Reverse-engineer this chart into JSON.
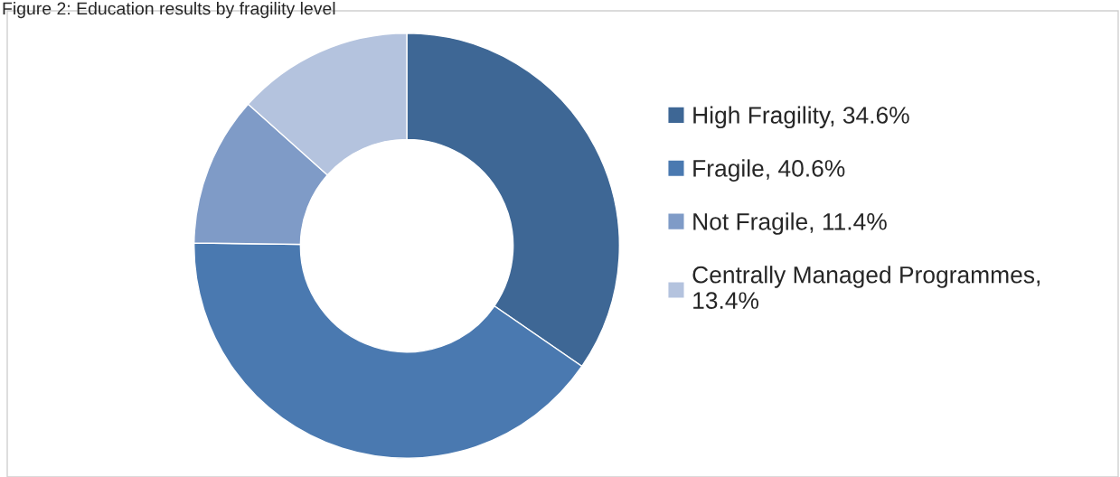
{
  "chart_data": {
    "type": "donut",
    "title": "Figure 2: Education results by fragility level",
    "categories": [
      "High Fragility, 34.6%",
      "Fragile, 40.6%",
      "Not Fragile, 11.4%",
      "Centrally Managed Programmes, 13.4%"
    ],
    "values": [
      34.6,
      40.6,
      11.4,
      13.4
    ],
    "colors": [
      "#3e6795",
      "#4a79b0",
      "#7f9bc7",
      "#b4c3de"
    ],
    "legend": "right"
  }
}
